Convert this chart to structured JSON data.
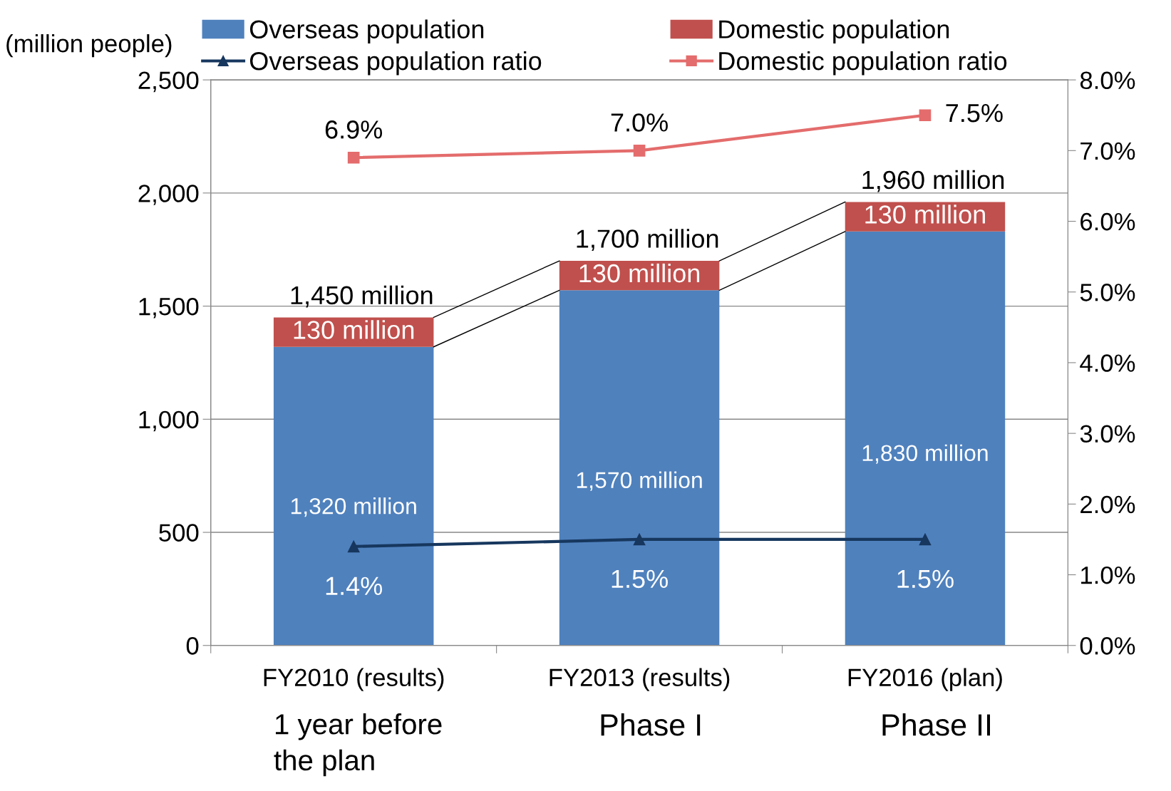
{
  "chart_data": {
    "type": "bar",
    "stacked": true,
    "categories": [
      "FY2010 (results)",
      "FY2013 (results)",
      "FY2016 (plan)"
    ],
    "ylabel": "(million people)",
    "series": [
      {
        "name": "Overseas population",
        "color": "#4f81bd",
        "values": [
          1320,
          1570,
          1830
        ],
        "value_labels": [
          "1,320 million",
          "1,570 million",
          "1,830 million"
        ]
      },
      {
        "name": "Domestic population",
        "color": "#c0504d",
        "values": [
          130,
          130,
          130
        ],
        "value_labels": [
          "130 million",
          "130 million",
          "130 million"
        ]
      },
      {
        "name": "Overseas population ratio",
        "type": "line",
        "axis": "y2",
        "marker": "triangle",
        "color": "#17375e",
        "values": [
          1.4,
          1.5,
          1.5
        ],
        "value_labels": [
          "1.4%",
          "1.5%",
          "1.5%"
        ]
      },
      {
        "name": "Domestic population ratio",
        "type": "line",
        "axis": "y2",
        "marker": "square",
        "color": "#e46c6c",
        "values": [
          6.9,
          7.0,
          7.5
        ],
        "value_labels": [
          "6.9%",
          "7.0%",
          "7.5%"
        ]
      }
    ],
    "totals": [
      "1,450 million",
      "1,700 million",
      "1,960 million"
    ],
    "annotations": [
      "1 year before\nthe plan",
      "Phase I",
      "Phase II"
    ],
    "ylim": [
      0,
      2500
    ],
    "yticks": [
      {
        "value": 0,
        "label": "0"
      },
      {
        "value": 500,
        "label": "500"
      },
      {
        "value": 1000,
        "label": "1,000"
      },
      {
        "value": 1500,
        "label": "1,500"
      },
      {
        "value": 2000,
        "label": "2,000"
      },
      {
        "value": 2500,
        "label": "2,500"
      }
    ],
    "y2lim": [
      0,
      8
    ],
    "y2ticks": [
      {
        "value": 0,
        "label": "0.0%"
      },
      {
        "value": 1,
        "label": "1.0%"
      },
      {
        "value": 2,
        "label": "2.0%"
      },
      {
        "value": 3,
        "label": "3.0%"
      },
      {
        "value": 4,
        "label": "4.0%"
      },
      {
        "value": 5,
        "label": "5.0%"
      },
      {
        "value": 6,
        "label": "6.0%"
      },
      {
        "value": 7,
        "label": "7.0%"
      },
      {
        "value": 8,
        "label": "8.0%"
      }
    ],
    "grid": "y",
    "legend": "top"
  }
}
